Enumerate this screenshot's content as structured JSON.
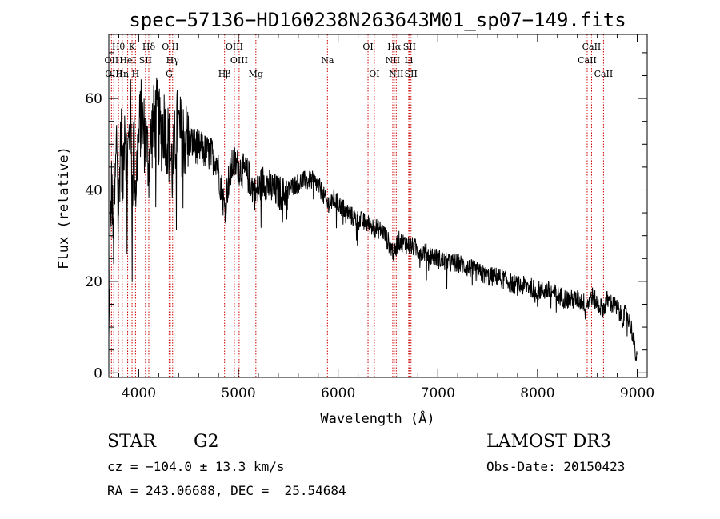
{
  "chart_data": {
    "type": "line",
    "title": "spec−57136−HD160238N263643M01_sp07−149.fits",
    "xlabel": "Wavelength (Å)",
    "ylabel": "Flux (relative)",
    "xlim": [
      3700,
      9100
    ],
    "ylim": [
      -1,
      74
    ],
    "x_ticks": [
      4000,
      5000,
      6000,
      7000,
      8000,
      9000
    ],
    "x_tick_labels": [
      "4000",
      "5000",
      "6000",
      "7000",
      "8000",
      "9000"
    ],
    "y_ticks": [
      0,
      20,
      40,
      60
    ],
    "y_tick_labels": [
      "0",
      "20",
      "40",
      "60"
    ],
    "series": [
      {
        "name": "flux",
        "x": [
          3700,
          3715,
          3730,
          3745,
          3760,
          3780,
          3800,
          3820,
          3840,
          3860,
          3880,
          3900,
          3920,
          3933,
          3950,
          3968,
          3990,
          4020,
          4060,
          4101,
          4140,
          4180,
          4220,
          4260,
          4300,
          4340,
          4380,
          4420,
          4480,
          4550,
          4620,
          4700,
          4780,
          4861,
          4900,
          4950,
          5000,
          5050,
          5100,
          5172,
          5250,
          5350,
          5450,
          5550,
          5650,
          5750,
          5800,
          5893,
          5950,
          6050,
          6150,
          6250,
          6350,
          6450,
          6563,
          6600,
          6700,
          6800,
          6900,
          7000,
          7100,
          7200,
          7300,
          7400,
          7500,
          7600,
          7700,
          7800,
          7900,
          8000,
          8100,
          8200,
          8300,
          8400,
          8498,
          8542,
          8600,
          8662,
          8700,
          8800,
          8850,
          8900,
          8950,
          9000
        ],
        "y": [
          5,
          30,
          42,
          28,
          38,
          52,
          35,
          55,
          40,
          58,
          45,
          50,
          56,
          38,
          52,
          40,
          48,
          56,
          52,
          46,
          54,
          56,
          52,
          55,
          50,
          44,
          54,
          52,
          51,
          50,
          49,
          48,
          47,
          36,
          42,
          46,
          45,
          44,
          43,
          39,
          42,
          40,
          39,
          41,
          42,
          42,
          41,
          37,
          38,
          36,
          34,
          33,
          32,
          31,
          26,
          29,
          28,
          27,
          26,
          25,
          24,
          24,
          23,
          22,
          21,
          21,
          20,
          19,
          19,
          18,
          18,
          17,
          16,
          16,
          15,
          17,
          15,
          14,
          16,
          14,
          12,
          13,
          9,
          2
        ]
      }
    ],
    "lines": [
      {
        "label": "Hθ",
        "wl": 3797,
        "row": 1
      },
      {
        "label": "OII",
        "wl": 3727,
        "row": 2
      },
      {
        "label": "OIII",
        "wl": 3750,
        "row": 3
      },
      {
        "label": "K",
        "wl": 3933,
        "row": 1
      },
      {
        "label": "HeI",
        "wl": 3889,
        "row": 2
      },
      {
        "label": "Hn",
        "wl": 3835,
        "row": 3
      },
      {
        "label": "H",
        "wl": 3968,
        "row": 3
      },
      {
        "label": "Hδ",
        "wl": 4101,
        "row": 1
      },
      {
        "label": "SII",
        "wl": 4068,
        "row": 2
      },
      {
        "label": "O II",
        "wl": 4317,
        "row": 1
      },
      {
        "label": "Hγ",
        "wl": 4340,
        "row": 2
      },
      {
        "label": "G",
        "wl": 4305,
        "row": 3
      },
      {
        "label": "Hβ",
        "wl": 4861,
        "row": 3
      },
      {
        "label": "OIII",
        "wl": 4959,
        "row": 1
      },
      {
        "label": "OIII",
        "wl": 5007,
        "row": 2
      },
      {
        "label": "Mg",
        "wl": 5175,
        "row": 3
      },
      {
        "label": "Na",
        "wl": 5893,
        "row": 2
      },
      {
        "label": "OI",
        "wl": 6300,
        "row": 1
      },
      {
        "label": "OI",
        "wl": 6363,
        "row": 3
      },
      {
        "label": "Hα",
        "wl": 6563,
        "row": 1
      },
      {
        "label": "NII",
        "wl": 6548,
        "row": 2
      },
      {
        "label": "NII",
        "wl": 6583,
        "row": 3
      },
      {
        "label": "SII",
        "wl": 6716,
        "row": 1
      },
      {
        "label": "Li",
        "wl": 6708,
        "row": 2
      },
      {
        "label": "SII",
        "wl": 6731,
        "row": 3
      },
      {
        "label": "CaII",
        "wl": 8542,
        "row": 1
      },
      {
        "label": "CaII",
        "wl": 8498,
        "row": 2
      },
      {
        "label": "CaII",
        "wl": 8662,
        "row": 3
      }
    ]
  },
  "info": {
    "object_class": "STAR",
    "subclass": "G2",
    "survey": "LAMOST DR3",
    "cz": "cz = −104.0 ± 13.3 km/s",
    "obs_date": "Obs-Date: 20150423",
    "coords": "RA = 243.06688, DEC =  25.54684"
  },
  "colors": {
    "line_marker": "#cc0000",
    "spectrum": "#000000"
  }
}
